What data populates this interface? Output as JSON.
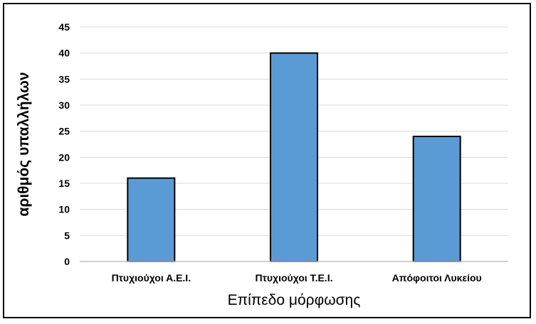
{
  "chart_data": {
    "type": "bar",
    "categories": [
      "Πτυχιούχοι Α.Ε.Ι.",
      "Πτυχιούχοι Τ.Ε.Ι.",
      "Απόφοιτοι Λυκείου"
    ],
    "values": [
      16,
      40,
      24
    ],
    "xlabel": "Επίπεδο μόρφωσης",
    "ylabel": "αριθμός υπαλλήλων",
    "ylim": [
      0,
      45
    ],
    "yticks": [
      "0",
      "5",
      "10",
      "15",
      "20",
      "25",
      "30",
      "35",
      "40",
      "45"
    ],
    "grid": true,
    "legend": "none",
    "colors": {
      "bar_fill": "#5b9bd5",
      "bar_stroke": "#000000",
      "grid": "#d9d9d9",
      "axis": "#bfbfbf",
      "text": "#000000"
    }
  }
}
